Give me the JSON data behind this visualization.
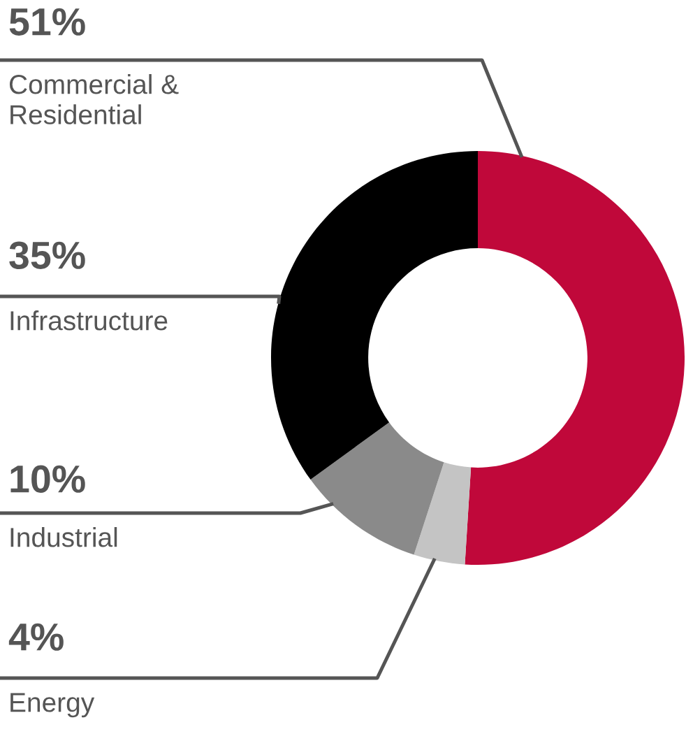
{
  "chart_data": {
    "type": "donut",
    "categories": [
      "Commercial &\nResidential",
      "Energy",
      "Industrial",
      "Infrastructure"
    ],
    "values": [
      51,
      4,
      10,
      35
    ],
    "colors": [
      "#c0083a",
      "#c4c4c4",
      "#8a8a8a",
      "#000000"
    ],
    "value_labels": [
      "51%",
      "4%",
      "10%",
      "35%"
    ]
  }
}
